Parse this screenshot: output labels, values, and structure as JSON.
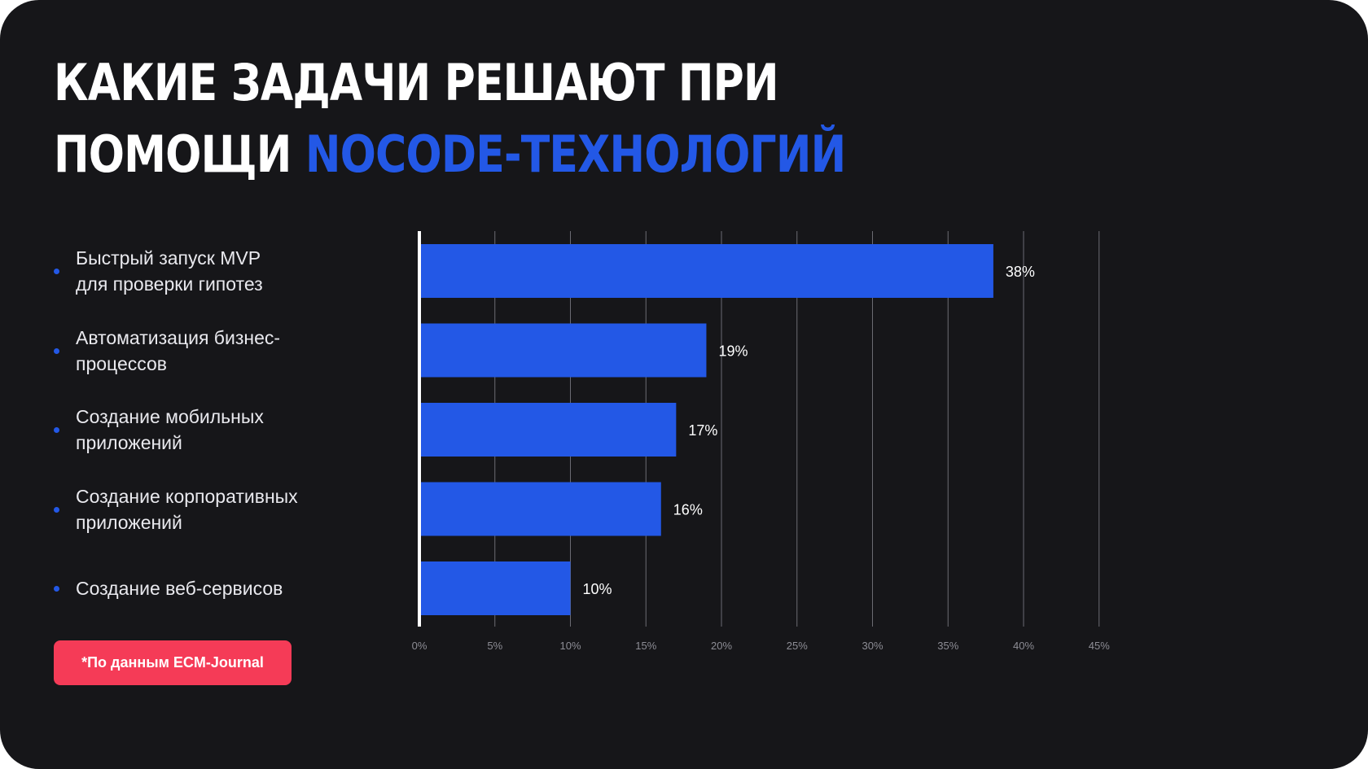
{
  "title": {
    "main": "КАКИЕ ЗАДАЧИ РЕШАЮТ ПРИ ПОМОЩИ ",
    "accent": "NOCODE-ТЕХНОЛОГИЙ"
  },
  "source_note": "*По данным ECM-Journal",
  "colors": {
    "background": "#161619",
    "bar": "#2358e6",
    "accent": "#2358e6",
    "badge": "#f53b57",
    "gridline": "#6b6b72"
  },
  "chart_data": {
    "type": "bar",
    "orientation": "horizontal",
    "categories": [
      "Быстрый запуск MVP\nдля проверки гипотез",
      "Автоматизация бизнес-\nпроцессов",
      "Создание мобильных\nприложений",
      "Создание корпоративных\nприложений",
      "Создание веб-сервисов"
    ],
    "values": [
      38,
      19,
      17,
      16,
      10
    ],
    "data_labels": [
      "38%",
      "19%",
      "17%",
      "16%",
      "10%"
    ],
    "xlim": [
      0,
      45
    ],
    "xticks": [
      0,
      5,
      10,
      15,
      20,
      25,
      30,
      35,
      40,
      45
    ],
    "xtick_labels": [
      "0%",
      "5%",
      "10%",
      "15%",
      "20%",
      "25%",
      "30%",
      "35%",
      "40%",
      "45%"
    ],
    "grid": true,
    "xlabel": "",
    "ylabel": ""
  }
}
